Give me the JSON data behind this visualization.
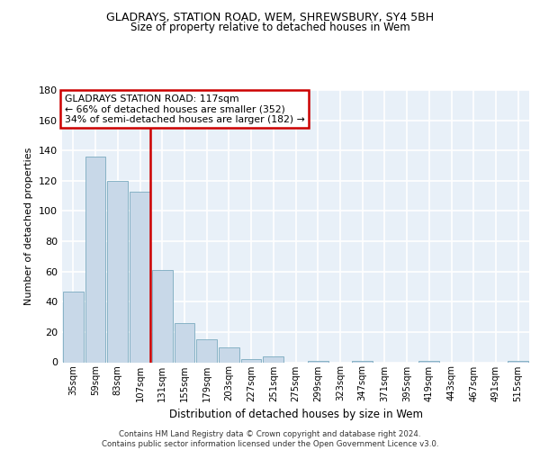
{
  "title1": "GLADRAYS, STATION ROAD, WEM, SHREWSBURY, SY4 5BH",
  "title2": "Size of property relative to detached houses in Wem",
  "xlabel": "Distribution of detached houses by size in Wem",
  "ylabel": "Number of detached properties",
  "categories": [
    "35sqm",
    "59sqm",
    "83sqm",
    "107sqm",
    "131sqm",
    "155sqm",
    "179sqm",
    "203sqm",
    "227sqm",
    "251sqm",
    "275sqm",
    "299sqm",
    "323sqm",
    "347sqm",
    "371sqm",
    "395sqm",
    "419sqm",
    "443sqm",
    "467sqm",
    "491sqm",
    "515sqm"
  ],
  "values": [
    47,
    136,
    120,
    113,
    61,
    26,
    15,
    10,
    2,
    4,
    0,
    1,
    0,
    1,
    0,
    0,
    1,
    0,
    0,
    0,
    1
  ],
  "bar_color": "#c8d8e8",
  "bar_edge_color": "#7aaabf",
  "background_color": "#e8f0f8",
  "grid_color": "#ffffff",
  "annotation_text_line1": "GLADRAYS STATION ROAD: 117sqm",
  "annotation_text_line2": "← 66% of detached houses are smaller (352)",
  "annotation_text_line3": "34% of semi-detached houses are larger (182) →",
  "annotation_box_color": "#cc0000",
  "vertical_line_color": "#cc0000",
  "vertical_line_x": 3.45,
  "footer": "Contains HM Land Registry data © Crown copyright and database right 2024.\nContains public sector information licensed under the Open Government Licence v3.0.",
  "ylim": [
    0,
    180
  ],
  "yticks": [
    0,
    20,
    40,
    60,
    80,
    100,
    120,
    140,
    160,
    180
  ]
}
